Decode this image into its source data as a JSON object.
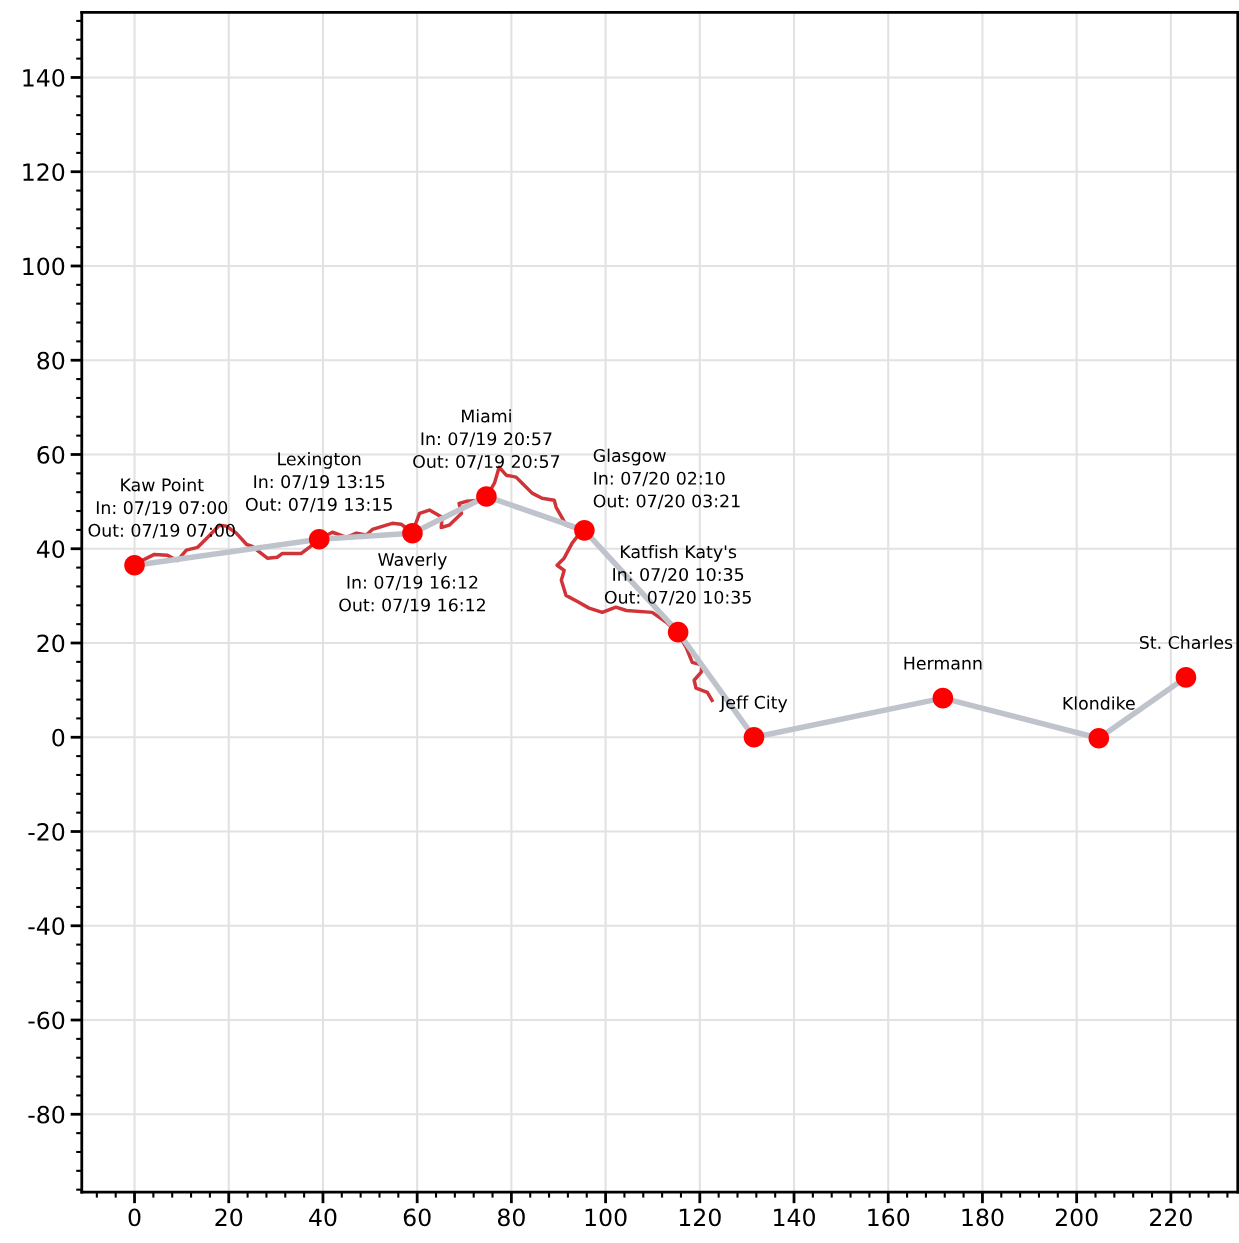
{
  "chart_data": {
    "type": "line",
    "xlim": [
      -11.2,
      234.2
    ],
    "ylim": [
      -96.5,
      153.8
    ],
    "xticks": [
      0,
      20,
      40,
      60,
      80,
      100,
      120,
      140,
      160,
      180,
      200,
      220
    ],
    "yticks": [
      -80,
      -60,
      -40,
      -20,
      0,
      20,
      40,
      60,
      80,
      100,
      120,
      140
    ],
    "grid": true,
    "legend": false,
    "series": [
      {
        "color": "#d13438",
        "marker": "none",
        "x": [
          0,
          4.2,
          7.0,
          9.1,
          11.0,
          13.4,
          15.5,
          18.0,
          19.5,
          21.6,
          23.8,
          25.0,
          26.9,
          28.2,
          30.3,
          31.4,
          35.4,
          37.1,
          39.2,
          42.0,
          45.0,
          47.1,
          49.2,
          50.5,
          54.7,
          56.6,
          59.0,
          60.5,
          62.6,
          65.3,
          65.1,
          66.8,
          69.4,
          68.9,
          70.6,
          73.2,
          74.9,
          76.4,
          76.8,
          77.4,
          78.9,
          81.0,
          82.3,
          84.4,
          86.5,
          89.1,
          89.5,
          90.8,
          91.6,
          93.8,
          95.0,
          92.9,
          91.2,
          89.7,
          91.2,
          90.6,
          91.6,
          94.4,
          96.5,
          99.3,
          102.2,
          104.4,
          109.9,
          112.9,
          115.2,
          117.1,
          118.4,
          120.5,
          120.3,
          118.8,
          119.2,
          121.6,
          122.6
        ],
        "values": [
          36.7,
          38.8,
          38.6,
          37.5,
          39.7,
          40.3,
          42.4,
          45.0,
          44.8,
          43.3,
          40.9,
          40.5,
          39.0,
          38.0,
          38.2,
          39.0,
          39.0,
          40.3,
          42.0,
          43.5,
          42.4,
          43.3,
          42.9,
          44.1,
          45.4,
          45.2,
          43.5,
          47.5,
          48.2,
          46.7,
          44.5,
          45.0,
          47.5,
          49.6,
          50.1,
          50.3,
          51.3,
          53.9,
          55.2,
          57.3,
          55.6,
          55.2,
          53.9,
          51.8,
          50.7,
          50.3,
          48.8,
          46.5,
          45.0,
          44.3,
          43.9,
          41.2,
          38.0,
          36.5,
          35.4,
          33.3,
          30.1,
          28.6,
          27.4,
          26.5,
          27.6,
          26.9,
          26.5,
          24.4,
          22.3,
          19.1,
          15.9,
          15.3,
          13.8,
          12.1,
          10.4,
          9.5,
          7.8
        ]
      },
      {
        "color": "#bfc4cc",
        "marker": "circle",
        "colors": [
          "#ff0000",
          "#ff0000",
          "#ff0000",
          "#ff0000",
          "#ff0000",
          "#ff0000",
          "#ff0000",
          "#ff0000",
          "#ff0000",
          "#ff0000"
        ],
        "x": [
          0,
          39.2,
          59.0,
          74.7,
          95.5,
          115.4,
          131.5,
          171.6,
          204.7,
          223.2
        ],
        "values": [
          36.5,
          42.0,
          43.3,
          51.1,
          43.9,
          22.3,
          0,
          8.3,
          -0.2,
          12.7
        ]
      }
    ],
    "annotations": [
      {
        "text": "Kaw Point\nIn: 07/19 07:00\nOut: 07/19 07:00",
        "x": 0,
        "y": 36.5
      },
      {
        "text": "Lexington\nIn: 07/19 13:15\nOut: 07/19 13:15",
        "x": 39.2,
        "y": 42.0
      },
      {
        "text": "Waverly\nIn: 07/19 16:12\nOut: 07/19 16:12",
        "x": 59.0,
        "y": 43.3
      },
      {
        "text": "Miami\nIn: 07/19 20:57\nOut: 07/19 20:57",
        "x": 74.7,
        "y": 51.1
      },
      {
        "text": "Glasgow\nIn: 07/20 02:10\nOut: 07/20 03:21",
        "x": 95.5,
        "y": 43.9
      },
      {
        "text": "Katfish Katy's\nIn: 07/20 10:35\nOut: 07/20 10:35",
        "x": 115.4,
        "y": 22.3
      },
      {
        "text": "Jeff City",
        "x": 131.5,
        "y": 0
      },
      {
        "text": "Hermann",
        "x": 171.6,
        "y": 8.3
      },
      {
        "text": "Klondike",
        "x": 204.7,
        "y": -0.2
      },
      {
        "text": "St. Charles",
        "x": 223.2,
        "y": 12.7
      }
    ]
  }
}
